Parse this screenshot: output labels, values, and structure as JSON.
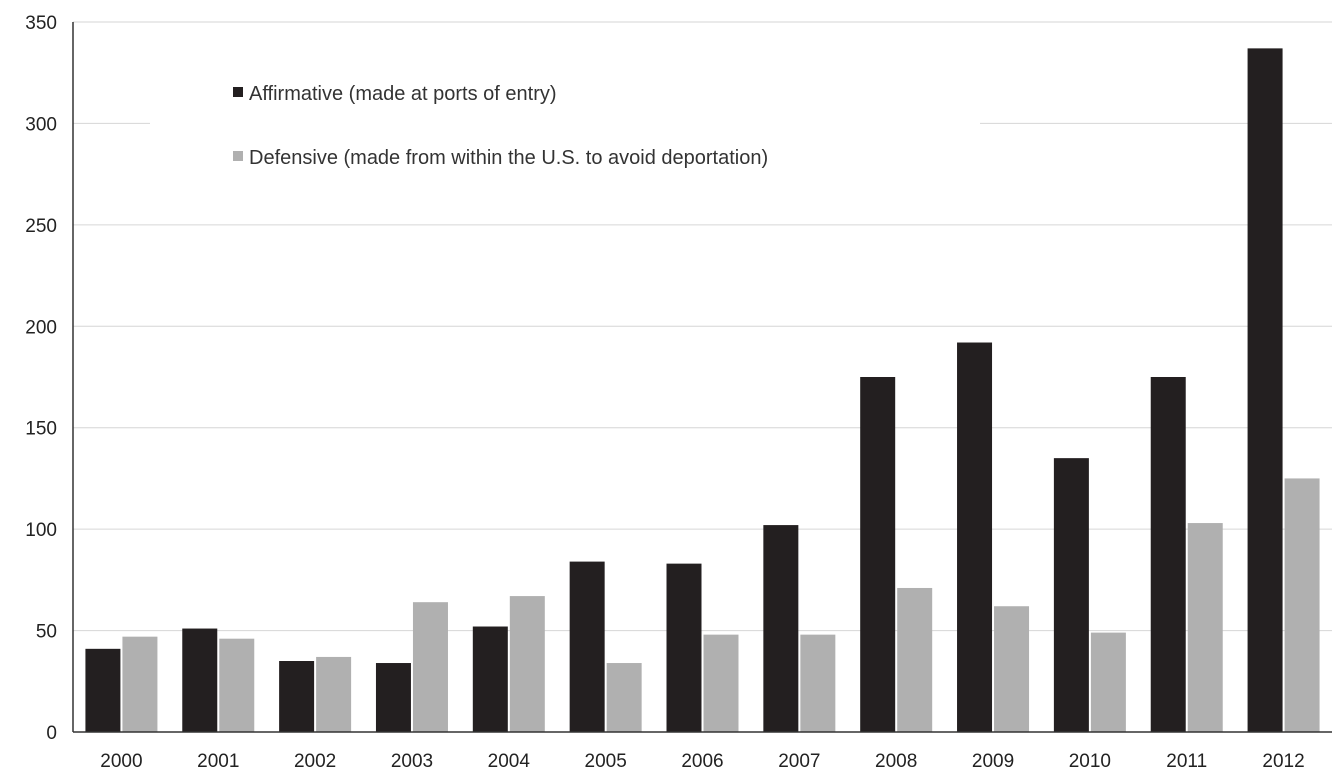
{
  "chart_data": {
    "type": "bar",
    "categories": [
      "2000",
      "2001",
      "2002",
      "2003",
      "2004",
      "2005",
      "2006",
      "2007",
      "2008",
      "2009",
      "2010",
      "2011",
      "2012"
    ],
    "series": [
      {
        "name": "Affirmative (made at ports of entry)",
        "color": "#231f20",
        "values": [
          41,
          51,
          35,
          34,
          52,
          84,
          83,
          102,
          175,
          192,
          135,
          175,
          337
        ]
      },
      {
        "name": "Defensive (made from within the U.S. to avoid deportation)",
        "color": "#b0b0b0",
        "values": [
          47,
          46,
          37,
          64,
          67,
          34,
          48,
          48,
          71,
          62,
          49,
          103,
          125
        ]
      }
    ],
    "title": "",
    "xlabel": "",
    "ylabel": "",
    "ylim": [
      0,
      350
    ],
    "yticks": [
      0,
      50,
      100,
      150,
      200,
      250,
      300,
      350
    ],
    "ytick_labels": [
      "0",
      "50",
      "100",
      "150",
      "200",
      "250",
      "300",
      "350"
    ],
    "grid": "horizontal",
    "legend_position": "top-left"
  }
}
